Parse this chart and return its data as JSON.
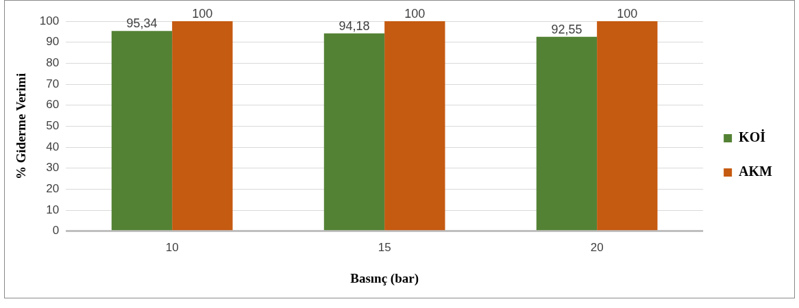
{
  "chart_data": {
    "type": "bar",
    "xlabel": "Basınç (bar)",
    "ylabel": "% Giderme Verimi",
    "categories": [
      "10",
      "15",
      "20"
    ],
    "series": [
      {
        "name": "KOİ",
        "color": "#548235",
        "values": [
          95.34,
          94.18,
          92.55
        ],
        "value_labels": [
          "95,34",
          "94,18",
          "92,55"
        ]
      },
      {
        "name": "AKM",
        "color": "#c55a11",
        "values": [
          100,
          100,
          100
        ],
        "value_labels": [
          "100",
          "100",
          "100"
        ]
      }
    ],
    "ylim": [
      0,
      100
    ],
    "yticks": [
      0,
      10,
      20,
      30,
      40,
      50,
      60,
      70,
      80,
      90,
      100
    ],
    "grid": "y",
    "legend": "right"
  }
}
